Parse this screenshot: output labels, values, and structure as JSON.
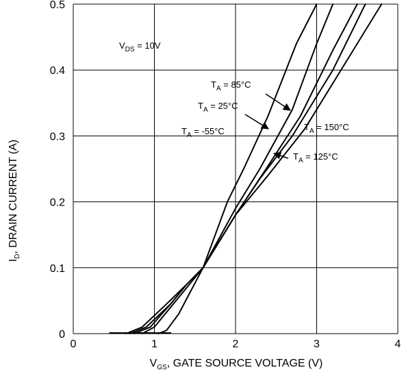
{
  "chart_data": {
    "type": "line",
    "title": "",
    "xlabel": "V_GS, GATE SOURCE VOLTAGE (V)",
    "ylabel": "I_D, DRAIN CURRENT (A)",
    "xlim": [
      0,
      4
    ],
    "ylim": [
      0,
      0.5
    ],
    "grid": true,
    "x_ticks": [
      "0",
      "1",
      "2",
      "3",
      "4"
    ],
    "y_ticks": [
      "0",
      "0.1",
      "0.2",
      "0.3",
      "0.4",
      "0.5"
    ],
    "x_tick_values": [
      0,
      1,
      2,
      3,
      4
    ],
    "y_tick_values": [
      0,
      0.1,
      0.2,
      0.3,
      0.4,
      0.5
    ],
    "annotations": [
      {
        "main": "V",
        "sub": "DS",
        "rest": " = 10V"
      },
      {
        "main": "T",
        "sub": "A",
        "rest": " = 85°C"
      },
      {
        "main": "T",
        "sub": "A",
        "rest": " = 25°C"
      },
      {
        "main": "T",
        "sub": "A",
        "rest": " = -55°C"
      },
      {
        "main": "T",
        "sub": "A",
        "rest": " = 150°C"
      },
      {
        "main": "T",
        "sub": "A",
        "rest": " = 125°C"
      }
    ],
    "series": [
      {
        "name": "T_A = -55°C",
        "x": [
          1.05,
          1.15,
          1.3,
          1.45,
          1.6,
          1.75,
          1.9,
          2.1,
          2.4,
          2.75,
          3.0
        ],
        "y": [
          0,
          0.005,
          0.03,
          0.065,
          0.1,
          0.15,
          0.2,
          0.25,
          0.33,
          0.44,
          0.5
        ]
      },
      {
        "name": "T_A = 25°C",
        "x": [
          0.85,
          1.0,
          1.2,
          1.4,
          1.6,
          1.8,
          2.0,
          2.3,
          2.7,
          3.0,
          3.2
        ],
        "y": [
          0,
          0.01,
          0.04,
          0.07,
          0.1,
          0.145,
          0.19,
          0.25,
          0.34,
          0.44,
          0.5
        ]
      },
      {
        "name": "T_A = 85°C",
        "x": [
          0.75,
          0.95,
          1.2,
          1.4,
          1.6,
          1.8,
          2.0,
          2.35,
          2.8,
          3.2,
          3.5
        ],
        "y": [
          0,
          0.01,
          0.045,
          0.075,
          0.1,
          0.14,
          0.18,
          0.245,
          0.33,
          0.43,
          0.5
        ]
      },
      {
        "name": "T_A = 125°C",
        "x": [
          0.7,
          0.9,
          1.2,
          1.4,
          1.6,
          1.8,
          2.0,
          2.3,
          2.7,
          3.2,
          3.6
        ],
        "y": [
          0,
          0.01,
          0.045,
          0.075,
          0.1,
          0.14,
          0.18,
          0.235,
          0.3,
          0.4,
          0.5
        ]
      },
      {
        "name": "T_A = 150°C",
        "x": [
          0.65,
          0.85,
          1.15,
          1.4,
          1.6,
          1.8,
          2.0,
          2.4,
          2.85,
          3.35,
          3.8
        ],
        "y": [
          0,
          0.01,
          0.045,
          0.075,
          0.1,
          0.14,
          0.18,
          0.24,
          0.31,
          0.41,
          0.5
        ]
      }
    ],
    "baseline": {
      "x": [
        0.45,
        1.2
      ],
      "y": [
        0,
        0
      ]
    }
  }
}
